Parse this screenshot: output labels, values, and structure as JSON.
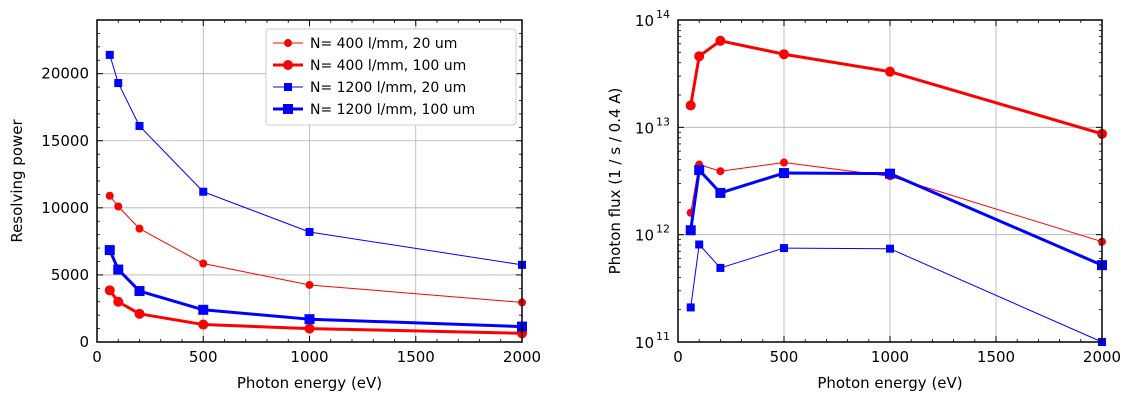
{
  "chart_data": [
    {
      "type": "line",
      "xlabel": "Photon energy (eV)",
      "ylabel": "Resolving power",
      "xlim": [
        0,
        2000
      ],
      "ylim": [
        0,
        24000
      ],
      "xticks": [
        0,
        500,
        1000,
        1500,
        2000
      ],
      "yticks": [
        0,
        5000,
        10000,
        15000,
        20000
      ],
      "grid": true,
      "legend_position": "top-right",
      "series": [
        {
          "name": "N=  400 l/mm,  20 um",
          "color": "#ff0000",
          "marker": "circle",
          "style": "thin",
          "x": [
            60,
            100,
            200,
            500,
            1000,
            2000
          ],
          "y": [
            10900,
            10100,
            8450,
            5850,
            4250,
            2950
          ]
        },
        {
          "name": "N=  400 l/mm, 100 um",
          "color": "#ff0000",
          "marker": "circle",
          "style": "thick",
          "x": [
            60,
            100,
            200,
            500,
            1000,
            2000
          ],
          "y": [
            3850,
            3000,
            2100,
            1300,
            1000,
            650
          ]
        },
        {
          "name": "N= 1200 l/mm,  20 um",
          "color": "#0000ff",
          "marker": "square",
          "style": "thin",
          "x": [
            60,
            100,
            200,
            500,
            1000,
            2000
          ],
          "y": [
            21400,
            19300,
            16100,
            11200,
            8200,
            5750
          ]
        },
        {
          "name": "N= 1200 l/mm, 100 um",
          "color": "#0000ff",
          "marker": "square",
          "style": "thick",
          "x": [
            60,
            100,
            200,
            500,
            1000,
            2000
          ],
          "y": [
            6850,
            5400,
            3800,
            2400,
            1700,
            1150
          ]
        }
      ]
    },
    {
      "type": "line",
      "xlabel": "Photon energy (eV)",
      "ylabel": "Photon flux (1 / s / 0.4 A)",
      "xlim": [
        0,
        2000
      ],
      "ylim": [
        100000000000.0,
        100000000000000.0
      ],
      "yscale": "log",
      "xticks": [
        0,
        500,
        1000,
        1500,
        2000
      ],
      "yticks": [
        100000000000.0,
        1000000000000.0,
        10000000000000.0,
        100000000000000.0
      ],
      "ytick_labels": [
        {
          "base": "10",
          "exp": "11"
        },
        {
          "base": "10",
          "exp": "12"
        },
        {
          "base": "10",
          "exp": "13"
        },
        {
          "base": "10",
          "exp": "14"
        }
      ],
      "grid": true,
      "series": [
        {
          "color": "#ff0000",
          "marker": "circle",
          "style": "thin",
          "x": [
            60,
            100,
            200,
            500,
            1000,
            2000
          ],
          "y": [
            1600000000000.0,
            4500000000000.0,
            3900000000000.0,
            4700000000000.0,
            3500000000000.0,
            860000000000.0
          ]
        },
        {
          "color": "#ff0000",
          "marker": "circle",
          "style": "thick",
          "x": [
            60,
            100,
            200,
            500,
            1000,
            2000
          ],
          "y": [
            16000000000000.0,
            46000000000000.0,
            64000000000000.0,
            48000000000000.0,
            33000000000000.0,
            8700000000000.0
          ]
        },
        {
          "color": "#0000ff",
          "marker": "square",
          "style": "thin",
          "x": [
            60,
            100,
            200,
            500,
            1000,
            2000
          ],
          "y": [
            210000000000.0,
            810000000000.0,
            490000000000.0,
            750000000000.0,
            740000000000.0,
            100000000000.0
          ]
        },
        {
          "color": "#0000ff",
          "marker": "square",
          "style": "thick",
          "x": [
            60,
            100,
            200,
            500,
            1000,
            2000
          ],
          "y": [
            1100000000000.0,
            4000000000000.0,
            2450000000000.0,
            3750000000000.0,
            3700000000000.0,
            520000000000.0
          ]
        }
      ]
    }
  ]
}
